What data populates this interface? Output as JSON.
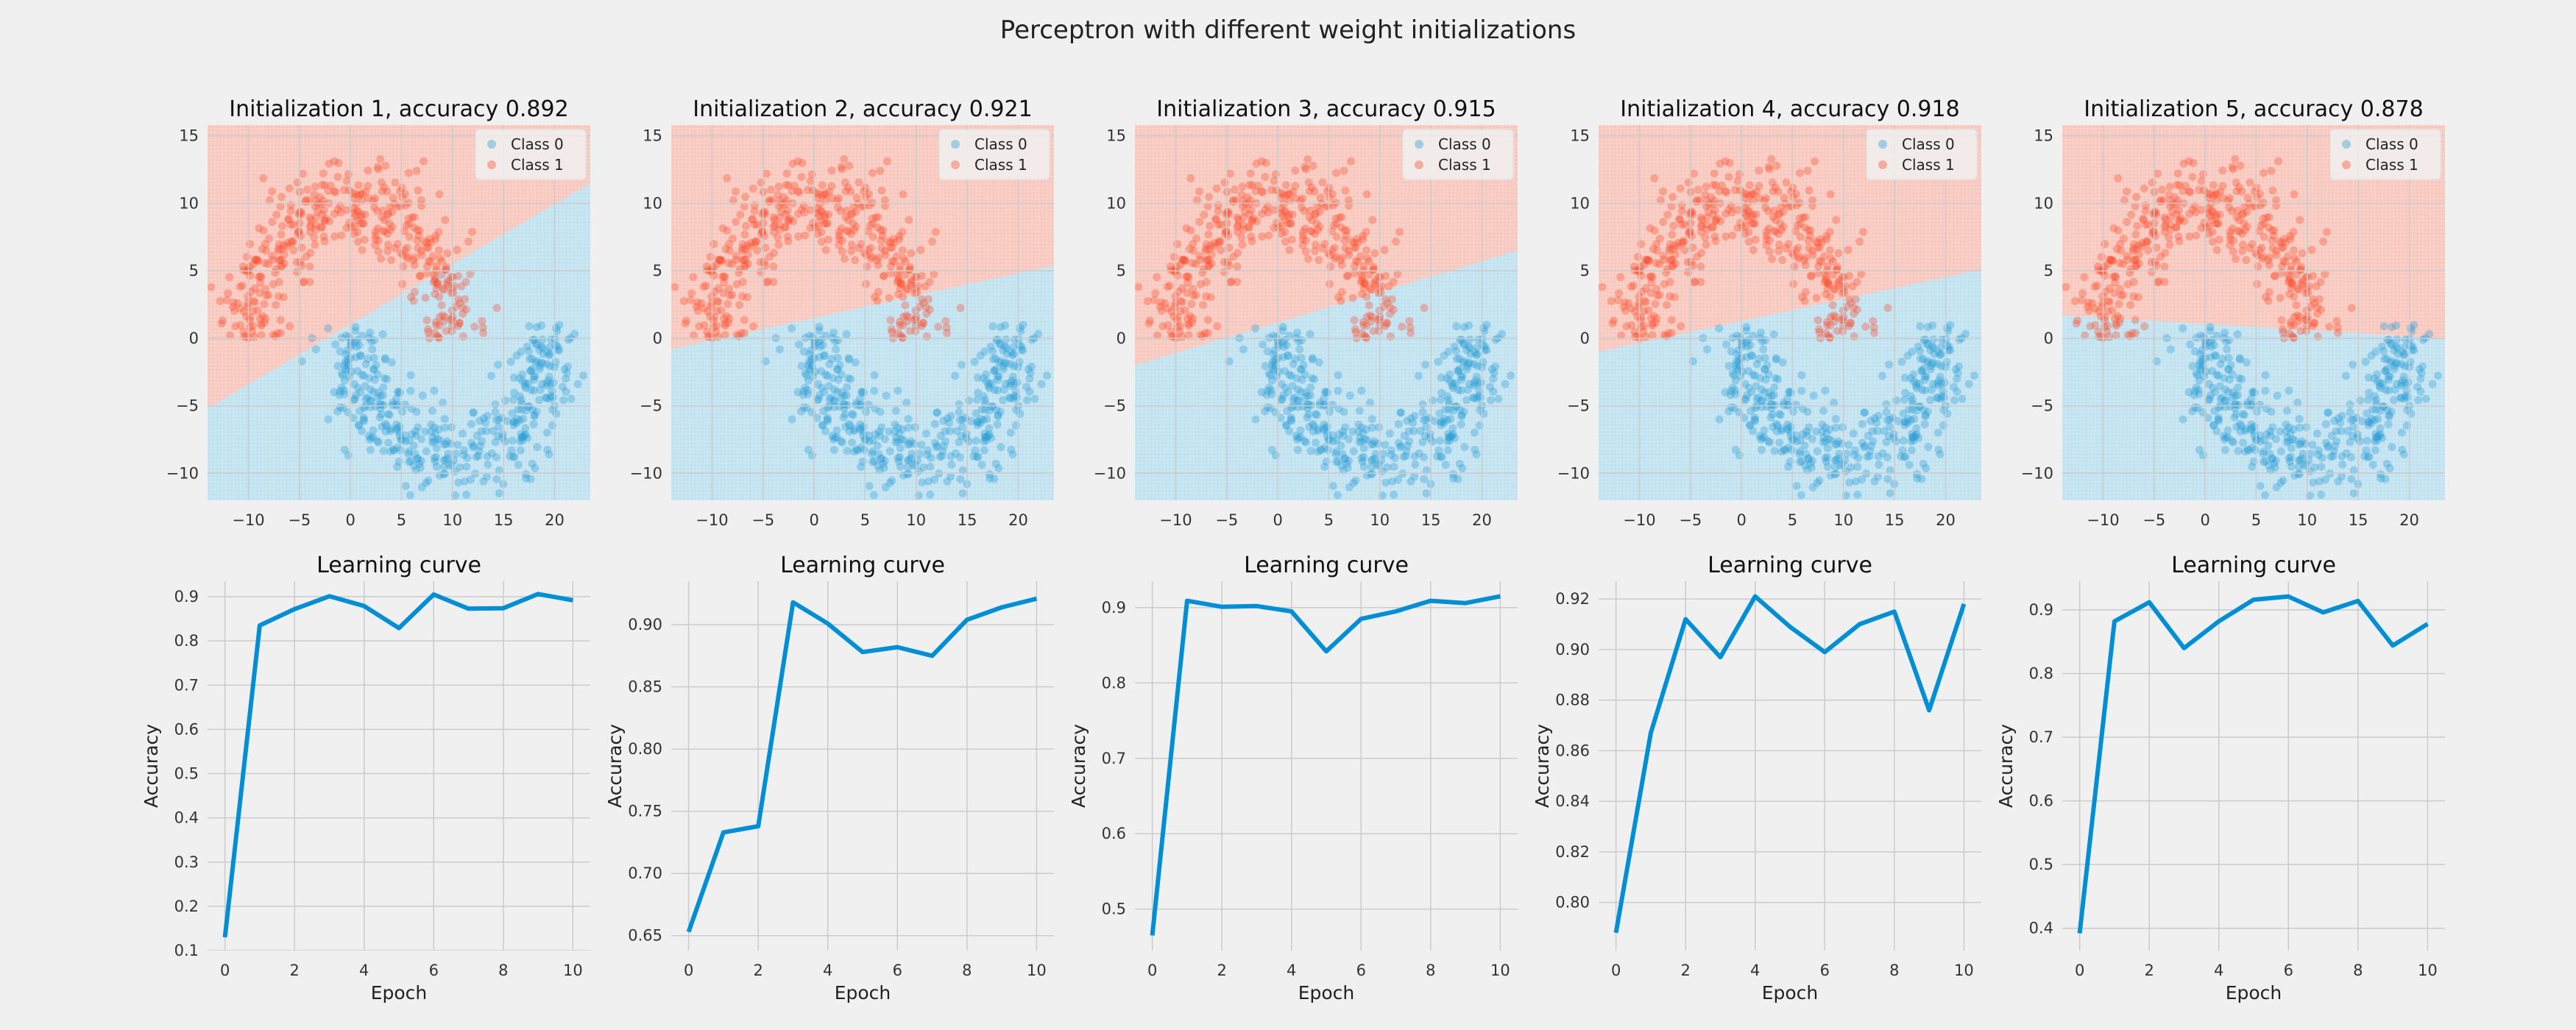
{
  "title": "Perceptron with different weight initializations",
  "colors": {
    "figure_bg": "#f0f0f0",
    "class0": "#2a9fd6",
    "class1": "#fc4f30",
    "region0": "#bfe1f0",
    "region1": "#f7c6bc",
    "line": "#008fd5",
    "grid": "#cbcbcb"
  },
  "legend": {
    "labels": [
      "Class 0",
      "Class 1"
    ],
    "placement": "top-right"
  },
  "chart_data": [
    {
      "type": "scatter",
      "title": "Initialization 1, accuracy 0.892",
      "xlim": [
        -14,
        23.5
      ],
      "ylim": [
        -12,
        15.8
      ],
      "xticks": [
        -10,
        -5,
        0,
        5,
        10,
        15,
        20
      ],
      "yticks": [
        -10,
        -5,
        0,
        5,
        10,
        15
      ],
      "legend": [
        "Class 0",
        "Class 1"
      ],
      "decision_boundary": [
        [
          -14,
          -5.2
        ],
        [
          23.5,
          11.5
        ]
      ],
      "class_above": "Class 1",
      "class_below": "Class 0",
      "dataset": "two half-moons: Class 1 upper moon centred (0,0) radius 10; Class 0 lower moon centred (10,1) radius 10"
    },
    {
      "type": "scatter",
      "title": "Initialization 2, accuracy 0.921",
      "xlim": [
        -14,
        23.5
      ],
      "ylim": [
        -12,
        15.8
      ],
      "xticks": [
        -10,
        -5,
        0,
        5,
        10,
        15,
        20
      ],
      "yticks": [
        -10,
        -5,
        0,
        5,
        10,
        15
      ],
      "legend": [
        "Class 0",
        "Class 1"
      ],
      "decision_boundary": [
        [
          -14,
          -0.8
        ],
        [
          23.5,
          5.4
        ]
      ],
      "class_above": "Class 1",
      "class_below": "Class 0"
    },
    {
      "type": "scatter",
      "title": "Initialization 3, accuracy 0.915",
      "xlim": [
        -14,
        23.5
      ],
      "ylim": [
        -12,
        15.8
      ],
      "xticks": [
        -10,
        -5,
        0,
        5,
        10,
        15,
        20
      ],
      "yticks": [
        -10,
        -5,
        0,
        5,
        10,
        15
      ],
      "legend": [
        "Class 0",
        "Class 1"
      ],
      "decision_boundary": [
        [
          -14,
          -2.0
        ],
        [
          23.5,
          6.5
        ]
      ],
      "class_above": "Class 1",
      "class_below": "Class 0"
    },
    {
      "type": "scatter",
      "title": "Initialization 4, accuracy 0.918",
      "xlim": [
        -14,
        23.5
      ],
      "ylim": [
        -12,
        15.8
      ],
      "xticks": [
        -10,
        -5,
        0,
        5,
        10,
        15,
        20
      ],
      "yticks": [
        -10,
        -5,
        0,
        5,
        10,
        15
      ],
      "legend": [
        "Class 0",
        "Class 1"
      ],
      "decision_boundary": [
        [
          -14,
          -1.0
        ],
        [
          23.5,
          5.1
        ]
      ],
      "class_above": "Class 1",
      "class_below": "Class 0"
    },
    {
      "type": "scatter",
      "title": "Initialization 5, accuracy 0.878",
      "xlim": [
        -14,
        23.5
      ],
      "ylim": [
        -12,
        15.8
      ],
      "xticks": [
        -10,
        -5,
        0,
        5,
        10,
        15,
        20
      ],
      "yticks": [
        -10,
        -5,
        0,
        5,
        10,
        15
      ],
      "legend": [
        "Class 0",
        "Class 1"
      ],
      "decision_boundary": [
        [
          -14,
          1.7
        ],
        [
          23.5,
          0.0
        ]
      ],
      "class_above": "Class 1",
      "class_below": "Class 0"
    },
    {
      "type": "line",
      "title": "Learning curve",
      "xlabel": "Epoch",
      "ylabel": "Accuracy",
      "x": [
        0,
        1,
        2,
        3,
        4,
        5,
        6,
        7,
        8,
        9,
        10
      ],
      "values": [
        0.13,
        0.835,
        0.872,
        0.901,
        0.879,
        0.829,
        0.905,
        0.873,
        0.874,
        0.906,
        0.892
      ],
      "xlim": [
        -0.5,
        10.5
      ],
      "ylim": [
        0.1,
        0.935
      ],
      "xticks": [
        0,
        2,
        4,
        6,
        8,
        10
      ],
      "yticks": [
        0.1,
        0.2,
        0.3,
        0.4,
        0.5,
        0.6,
        0.7,
        0.8,
        0.9
      ],
      "yformat": 1
    },
    {
      "type": "line",
      "title": "Learning curve",
      "xlabel": "Epoch",
      "ylabel": "Accuracy",
      "x": [
        0,
        1,
        2,
        3,
        4,
        5,
        6,
        7,
        8,
        9,
        10
      ],
      "values": [
        0.653,
        0.733,
        0.738,
        0.918,
        0.901,
        0.878,
        0.882,
        0.875,
        0.904,
        0.914,
        0.921
      ],
      "xlim": [
        -0.5,
        10.5
      ],
      "ylim": [
        0.638,
        0.935
      ],
      "xticks": [
        0,
        2,
        4,
        6,
        8,
        10
      ],
      "yticks": [
        0.65,
        0.7,
        0.75,
        0.8,
        0.85,
        0.9
      ],
      "yformat": 2
    },
    {
      "type": "line",
      "title": "Learning curve",
      "xlabel": "Epoch",
      "ylabel": "Accuracy",
      "x": [
        0,
        1,
        2,
        3,
        4,
        5,
        6,
        7,
        8,
        9,
        10
      ],
      "values": [
        0.465,
        0.909,
        0.901,
        0.902,
        0.895,
        0.842,
        0.885,
        0.895,
        0.909,
        0.906,
        0.915
      ],
      "xlim": [
        -0.5,
        10.5
      ],
      "ylim": [
        0.445,
        0.935
      ],
      "xticks": [
        0,
        2,
        4,
        6,
        8,
        10
      ],
      "yticks": [
        0.5,
        0.6,
        0.7,
        0.8,
        0.9
      ],
      "yformat": 1
    },
    {
      "type": "line",
      "title": "Learning curve",
      "xlabel": "Epoch",
      "ylabel": "Accuracy",
      "x": [
        0,
        1,
        2,
        3,
        4,
        5,
        6,
        7,
        8,
        9,
        10
      ],
      "values": [
        0.788,
        0.867,
        0.912,
        0.897,
        0.921,
        0.909,
        0.899,
        0.91,
        0.915,
        0.876,
        0.918
      ],
      "xlim": [
        -0.5,
        10.5
      ],
      "ylim": [
        0.781,
        0.927
      ],
      "xticks": [
        0,
        2,
        4,
        6,
        8,
        10
      ],
      "yticks": [
        0.8,
        0.82,
        0.84,
        0.86,
        0.88,
        0.9,
        0.92
      ],
      "yformat": 2
    },
    {
      "type": "line",
      "title": "Learning curve",
      "xlabel": "Epoch",
      "ylabel": "Accuracy",
      "x": [
        0,
        1,
        2,
        3,
        4,
        5,
        6,
        7,
        8,
        9,
        10
      ],
      "values": [
        0.392,
        0.882,
        0.912,
        0.84,
        0.882,
        0.916,
        0.921,
        0.896,
        0.914,
        0.844,
        0.878
      ],
      "xlim": [
        -0.5,
        10.5
      ],
      "ylim": [
        0.365,
        0.945
      ],
      "xticks": [
        0,
        2,
        4,
        6,
        8,
        10
      ],
      "yticks": [
        0.4,
        0.5,
        0.6,
        0.7,
        0.8,
        0.9
      ],
      "yformat": 1
    }
  ]
}
